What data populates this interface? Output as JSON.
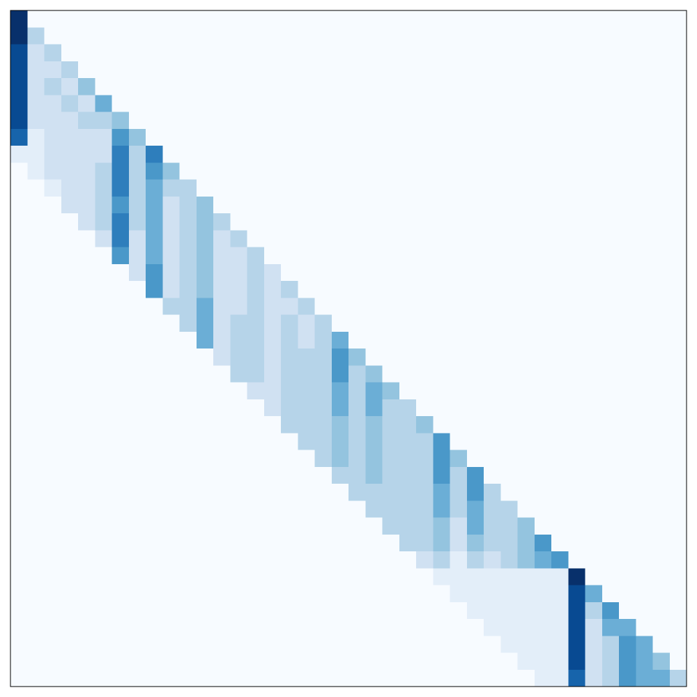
{
  "chart_data": {
    "type": "heatmap",
    "colormap": "Blues",
    "zlim": [
      0,
      1
    ],
    "z": [
      [
        1,
        0,
        0,
        0,
        0,
        0,
        0,
        0,
        0,
        0,
        0,
        0,
        0,
        0,
        0,
        0,
        0,
        0,
        0,
        0,
        0,
        0,
        0,
        0,
        0,
        0,
        0,
        0,
        0,
        0,
        0,
        0,
        0,
        0,
        0,
        0,
        0,
        0,
        0,
        0
      ],
      [
        1,
        0.3,
        0,
        0,
        0,
        0,
        0,
        0,
        0,
        0,
        0,
        0,
        0,
        0,
        0,
        0,
        0,
        0,
        0,
        0,
        0,
        0,
        0,
        0,
        0,
        0,
        0,
        0,
        0,
        0,
        0,
        0,
        0,
        0,
        0,
        0,
        0,
        0,
        0,
        0
      ],
      [
        0.9,
        0.2,
        0.3,
        0,
        0,
        0,
        0,
        0,
        0,
        0,
        0,
        0,
        0,
        0,
        0,
        0,
        0,
        0,
        0,
        0,
        0,
        0,
        0,
        0,
        0,
        0,
        0,
        0,
        0,
        0,
        0,
        0,
        0,
        0,
        0,
        0,
        0,
        0,
        0,
        0
      ],
      [
        0.9,
        0.2,
        0.2,
        0.3,
        0,
        0,
        0,
        0,
        0,
        0,
        0,
        0,
        0,
        0,
        0,
        0,
        0,
        0,
        0,
        0,
        0,
        0,
        0,
        0,
        0,
        0,
        0,
        0,
        0,
        0,
        0,
        0,
        0,
        0,
        0,
        0,
        0,
        0,
        0,
        0
      ],
      [
        0.9,
        0.2,
        0.3,
        0.2,
        0.4,
        0,
        0,
        0,
        0,
        0,
        0,
        0,
        0,
        0,
        0,
        0,
        0,
        0,
        0,
        0,
        0,
        0,
        0,
        0,
        0,
        0,
        0,
        0,
        0,
        0,
        0,
        0,
        0,
        0,
        0,
        0,
        0,
        0,
        0,
        0
      ],
      [
        0.9,
        0.2,
        0.2,
        0.3,
        0.2,
        0.5,
        0,
        0,
        0,
        0,
        0,
        0,
        0,
        0,
        0,
        0,
        0,
        0,
        0,
        0,
        0,
        0,
        0,
        0,
        0,
        0,
        0,
        0,
        0,
        0,
        0,
        0,
        0,
        0,
        0,
        0,
        0,
        0,
        0,
        0
      ],
      [
        0.9,
        0.2,
        0.2,
        0.2,
        0.3,
        0.3,
        0.4,
        0,
        0,
        0,
        0,
        0,
        0,
        0,
        0,
        0,
        0,
        0,
        0,
        0,
        0,
        0,
        0,
        0,
        0,
        0,
        0,
        0,
        0,
        0,
        0,
        0,
        0,
        0,
        0,
        0,
        0,
        0,
        0,
        0
      ],
      [
        0.8,
        0.1,
        0.2,
        0.2,
        0.2,
        0.2,
        0.6,
        0.4,
        0,
        0,
        0,
        0,
        0,
        0,
        0,
        0,
        0,
        0,
        0,
        0,
        0,
        0,
        0,
        0,
        0,
        0,
        0,
        0,
        0,
        0,
        0,
        0,
        0,
        0,
        0,
        0,
        0,
        0,
        0,
        0
      ],
      [
        0.1,
        0.1,
        0.2,
        0.2,
        0.2,
        0.2,
        0.7,
        0.3,
        0.7,
        0,
        0,
        0,
        0,
        0,
        0,
        0,
        0,
        0,
        0,
        0,
        0,
        0,
        0,
        0,
        0,
        0,
        0,
        0,
        0,
        0,
        0,
        0,
        0,
        0,
        0,
        0,
        0,
        0,
        0,
        0
      ],
      [
        0,
        0.1,
        0.2,
        0.2,
        0.2,
        0.3,
        0.7,
        0.3,
        0.6,
        0.4,
        0,
        0,
        0,
        0,
        0,
        0,
        0,
        0,
        0,
        0,
        0,
        0,
        0,
        0,
        0,
        0,
        0,
        0,
        0,
        0,
        0,
        0,
        0,
        0,
        0,
        0,
        0,
        0,
        0,
        0
      ],
      [
        0,
        0,
        0.1,
        0.2,
        0.2,
        0.3,
        0.7,
        0.3,
        0.5,
        0.3,
        0.3,
        0,
        0,
        0,
        0,
        0,
        0,
        0,
        0,
        0,
        0,
        0,
        0,
        0,
        0,
        0,
        0,
        0,
        0,
        0,
        0,
        0,
        0,
        0,
        0,
        0,
        0,
        0,
        0,
        0
      ],
      [
        0,
        0,
        0,
        0.2,
        0.2,
        0.3,
        0.6,
        0.3,
        0.5,
        0.2,
        0.3,
        0.4,
        0,
        0,
        0,
        0,
        0,
        0,
        0,
        0,
        0,
        0,
        0,
        0,
        0,
        0,
        0,
        0,
        0,
        0,
        0,
        0,
        0,
        0,
        0,
        0,
        0,
        0,
        0,
        0
      ],
      [
        0,
        0,
        0,
        0,
        0.2,
        0.3,
        0.7,
        0.3,
        0.5,
        0.2,
        0.3,
        0.4,
        0.3,
        0,
        0,
        0,
        0,
        0,
        0,
        0,
        0,
        0,
        0,
        0,
        0,
        0,
        0,
        0,
        0,
        0,
        0,
        0,
        0,
        0,
        0,
        0,
        0,
        0,
        0,
        0
      ],
      [
        0,
        0,
        0,
        0,
        0,
        0.2,
        0.7,
        0.2,
        0.5,
        0.2,
        0.3,
        0.4,
        0.2,
        0.3,
        0,
        0,
        0,
        0,
        0,
        0,
        0,
        0,
        0,
        0,
        0,
        0,
        0,
        0,
        0,
        0,
        0,
        0,
        0,
        0,
        0,
        0,
        0,
        0,
        0,
        0
      ],
      [
        0,
        0,
        0,
        0,
        0,
        0,
        0.6,
        0.2,
        0.5,
        0.2,
        0.3,
        0.4,
        0.2,
        0.2,
        0.3,
        0,
        0,
        0,
        0,
        0,
        0,
        0,
        0,
        0,
        0,
        0,
        0,
        0,
        0,
        0,
        0,
        0,
        0,
        0,
        0,
        0,
        0,
        0,
        0,
        0
      ],
      [
        0,
        0,
        0,
        0,
        0,
        0,
        0,
        0.2,
        0.6,
        0.2,
        0.3,
        0.4,
        0.2,
        0.2,
        0.3,
        0.2,
        0,
        0,
        0,
        0,
        0,
        0,
        0,
        0,
        0,
        0,
        0,
        0,
        0,
        0,
        0,
        0,
        0,
        0,
        0,
        0,
        0,
        0,
        0,
        0
      ],
      [
        0,
        0,
        0,
        0,
        0,
        0,
        0,
        0,
        0.6,
        0.2,
        0.3,
        0.4,
        0.2,
        0.2,
        0.3,
        0.2,
        0.3,
        0,
        0,
        0,
        0,
        0,
        0,
        0,
        0,
        0,
        0,
        0,
        0,
        0,
        0,
        0,
        0,
        0,
        0,
        0,
        0,
        0,
        0,
        0
      ],
      [
        0,
        0,
        0,
        0,
        0,
        0,
        0,
        0,
        0,
        0.3,
        0.3,
        0.5,
        0.2,
        0.2,
        0.3,
        0.2,
        0.2,
        0.3,
        0,
        0,
        0,
        0,
        0,
        0,
        0,
        0,
        0,
        0,
        0,
        0,
        0,
        0,
        0,
        0,
        0,
        0,
        0,
        0,
        0,
        0
      ],
      [
        0,
        0,
        0,
        0,
        0,
        0,
        0,
        0,
        0,
        0,
        0.3,
        0.5,
        0.2,
        0.3,
        0.3,
        0.2,
        0.3,
        0.2,
        0.3,
        0,
        0,
        0,
        0,
        0,
        0,
        0,
        0,
        0,
        0,
        0,
        0,
        0,
        0,
        0,
        0,
        0,
        0,
        0,
        0,
        0
      ],
      [
        0,
        0,
        0,
        0,
        0,
        0,
        0,
        0,
        0,
        0,
        0,
        0.5,
        0.2,
        0.3,
        0.3,
        0.2,
        0.3,
        0.2,
        0.3,
        0.5,
        0,
        0,
        0,
        0,
        0,
        0,
        0,
        0,
        0,
        0,
        0,
        0,
        0,
        0,
        0,
        0,
        0,
        0,
        0,
        0
      ],
      [
        0,
        0,
        0,
        0,
        0,
        0,
        0,
        0,
        0,
        0,
        0,
        0,
        0.2,
        0.3,
        0.3,
        0.2,
        0.3,
        0.3,
        0.3,
        0.6,
        0.4,
        0,
        0,
        0,
        0,
        0,
        0,
        0,
        0,
        0,
        0,
        0,
        0,
        0,
        0,
        0,
        0,
        0,
        0,
        0
      ],
      [
        0,
        0,
        0,
        0,
        0,
        0,
        0,
        0,
        0,
        0,
        0,
        0,
        0,
        0.3,
        0.3,
        0.2,
        0.3,
        0.3,
        0.3,
        0.6,
        0.3,
        0.4,
        0,
        0,
        0,
        0,
        0,
        0,
        0,
        0,
        0,
        0,
        0,
        0,
        0,
        0,
        0,
        0,
        0,
        0
      ],
      [
        0,
        0,
        0,
        0,
        0,
        0,
        0,
        0,
        0,
        0,
        0,
        0,
        0,
        0,
        0.2,
        0.2,
        0.3,
        0.3,
        0.3,
        0.5,
        0.3,
        0.5,
        0.4,
        0,
        0,
        0,
        0,
        0,
        0,
        0,
        0,
        0,
        0,
        0,
        0,
        0,
        0,
        0,
        0,
        0
      ],
      [
        0,
        0,
        0,
        0,
        0,
        0,
        0,
        0,
        0,
        0,
        0,
        0,
        0,
        0,
        0,
        0.2,
        0.3,
        0.3,
        0.3,
        0.5,
        0.3,
        0.5,
        0.3,
        0.3,
        0,
        0,
        0,
        0,
        0,
        0,
        0,
        0,
        0,
        0,
        0,
        0,
        0,
        0,
        0,
        0
      ],
      [
        0,
        0,
        0,
        0,
        0,
        0,
        0,
        0,
        0,
        0,
        0,
        0,
        0,
        0,
        0,
        0,
        0.3,
        0.3,
        0.3,
        0.4,
        0.3,
        0.4,
        0.3,
        0.3,
        0.4,
        0,
        0,
        0,
        0,
        0,
        0,
        0,
        0,
        0,
        0,
        0,
        0,
        0,
        0,
        0
      ],
      [
        0,
        0,
        0,
        0,
        0,
        0,
        0,
        0,
        0,
        0,
        0,
        0,
        0,
        0,
        0,
        0,
        0,
        0.3,
        0.3,
        0.4,
        0.3,
        0.4,
        0.3,
        0.3,
        0.3,
        0.6,
        0,
        0,
        0,
        0,
        0,
        0,
        0,
        0,
        0,
        0,
        0,
        0,
        0,
        0
      ],
      [
        0,
        0,
        0,
        0,
        0,
        0,
        0,
        0,
        0,
        0,
        0,
        0,
        0,
        0,
        0,
        0,
        0,
        0,
        0.3,
        0.4,
        0.3,
        0.4,
        0.3,
        0.3,
        0.3,
        0.6,
        0.4,
        0,
        0,
        0,
        0,
        0,
        0,
        0,
        0,
        0,
        0,
        0,
        0,
        0
      ],
      [
        0,
        0,
        0,
        0,
        0,
        0,
        0,
        0,
        0,
        0,
        0,
        0,
        0,
        0,
        0,
        0,
        0,
        0,
        0,
        0.3,
        0.3,
        0.4,
        0.3,
        0.3,
        0.3,
        0.6,
        0.3,
        0.6,
        0,
        0,
        0,
        0,
        0,
        0,
        0,
        0,
        0,
        0,
        0,
        0
      ],
      [
        0,
        0,
        0,
        0,
        0,
        0,
        0,
        0,
        0,
        0,
        0,
        0,
        0,
        0,
        0,
        0,
        0,
        0,
        0,
        0,
        0.3,
        0.3,
        0.3,
        0.3,
        0.3,
        0.5,
        0.3,
        0.6,
        0.3,
        0,
        0,
        0,
        0,
        0,
        0,
        0,
        0,
        0,
        0,
        0
      ],
      [
        0,
        0,
        0,
        0,
        0,
        0,
        0,
        0,
        0,
        0,
        0,
        0,
        0,
        0,
        0,
        0,
        0,
        0,
        0,
        0,
        0,
        0.3,
        0.3,
        0.3,
        0.3,
        0.5,
        0.3,
        0.5,
        0.3,
        0.3,
        0,
        0,
        0,
        0,
        0,
        0,
        0,
        0,
        0,
        0
      ],
      [
        0,
        0,
        0,
        0,
        0,
        0,
        0,
        0,
        0,
        0,
        0,
        0,
        0,
        0,
        0,
        0,
        0,
        0,
        0,
        0,
        0,
        0,
        0.3,
        0.3,
        0.3,
        0.4,
        0.2,
        0.5,
        0.3,
        0.3,
        0.4,
        0,
        0,
        0,
        0,
        0,
        0,
        0,
        0,
        0
      ],
      [
        0,
        0,
        0,
        0,
        0,
        0,
        0,
        0,
        0,
        0,
        0,
        0,
        0,
        0,
        0,
        0,
        0,
        0,
        0,
        0,
        0,
        0,
        0,
        0.3,
        0.3,
        0.4,
        0.2,
        0.4,
        0.3,
        0.3,
        0.4,
        0.6,
        0,
        0,
        0,
        0,
        0,
        0,
        0,
        0
      ],
      [
        0,
        0,
        0,
        0,
        0,
        0,
        0,
        0,
        0,
        0,
        0,
        0,
        0,
        0,
        0,
        0,
        0,
        0,
        0,
        0,
        0,
        0,
        0,
        0,
        0.2,
        0.3,
        0.1,
        0.3,
        0.2,
        0.3,
        0.4,
        0.5,
        0.6,
        0,
        0,
        0,
        0,
        0,
        0,
        0
      ],
      [
        0,
        0,
        0,
        0,
        0,
        0,
        0,
        0,
        0,
        0,
        0,
        0,
        0,
        0,
        0,
        0,
        0,
        0,
        0,
        0,
        0,
        0,
        0,
        0,
        0,
        0.1,
        0.1,
        0.1,
        0.1,
        0.1,
        0.1,
        0.1,
        0.1,
        1,
        0,
        0,
        0,
        0,
        0,
        0
      ],
      [
        0,
        0,
        0,
        0,
        0,
        0,
        0,
        0,
        0,
        0,
        0,
        0,
        0,
        0,
        0,
        0,
        0,
        0,
        0,
        0,
        0,
        0,
        0,
        0,
        0,
        0,
        0.1,
        0.1,
        0.1,
        0.1,
        0.1,
        0.1,
        0.1,
        0.9,
        0.5,
        0,
        0,
        0,
        0,
        0
      ],
      [
        0,
        0,
        0,
        0,
        0,
        0,
        0,
        0,
        0,
        0,
        0,
        0,
        0,
        0,
        0,
        0,
        0,
        0,
        0,
        0,
        0,
        0,
        0,
        0,
        0,
        0,
        0,
        0.1,
        0.1,
        0.1,
        0.1,
        0.1,
        0.1,
        0.9,
        0.3,
        0.6,
        0,
        0,
        0,
        0
      ],
      [
        0,
        0,
        0,
        0,
        0,
        0,
        0,
        0,
        0,
        0,
        0,
        0,
        0,
        0,
        0,
        0,
        0,
        0,
        0,
        0,
        0,
        0,
        0,
        0,
        0,
        0,
        0,
        0,
        0.1,
        0.1,
        0.1,
        0.1,
        0.1,
        0.9,
        0.2,
        0.5,
        0.5,
        0,
        0,
        0
      ],
      [
        0,
        0,
        0,
        0,
        0,
        0,
        0,
        0,
        0,
        0,
        0,
        0,
        0,
        0,
        0,
        0,
        0,
        0,
        0,
        0,
        0,
        0,
        0,
        0,
        0,
        0,
        0,
        0,
        0,
        0.1,
        0.1,
        0.1,
        0.1,
        0.9,
        0.2,
        0.3,
        0.6,
        0.5,
        0,
        0
      ],
      [
        0,
        0,
        0,
        0,
        0,
        0,
        0,
        0,
        0,
        0,
        0,
        0,
        0,
        0,
        0,
        0,
        0,
        0,
        0,
        0,
        0,
        0,
        0,
        0,
        0,
        0,
        0,
        0,
        0,
        0,
        0.1,
        0.1,
        0.1,
        0.9,
        0.2,
        0.3,
        0.6,
        0.5,
        0.4,
        0
      ],
      [
        0,
        0,
        0,
        0,
        0,
        0,
        0,
        0,
        0,
        0,
        0,
        0,
        0,
        0,
        0,
        0,
        0,
        0,
        0,
        0,
        0,
        0,
        0,
        0,
        0,
        0,
        0,
        0,
        0,
        0,
        0,
        0.1,
        0.1,
        0.8,
        0.2,
        0.3,
        0.6,
        0.5,
        0.5,
        0.3
      ]
    ]
  }
}
